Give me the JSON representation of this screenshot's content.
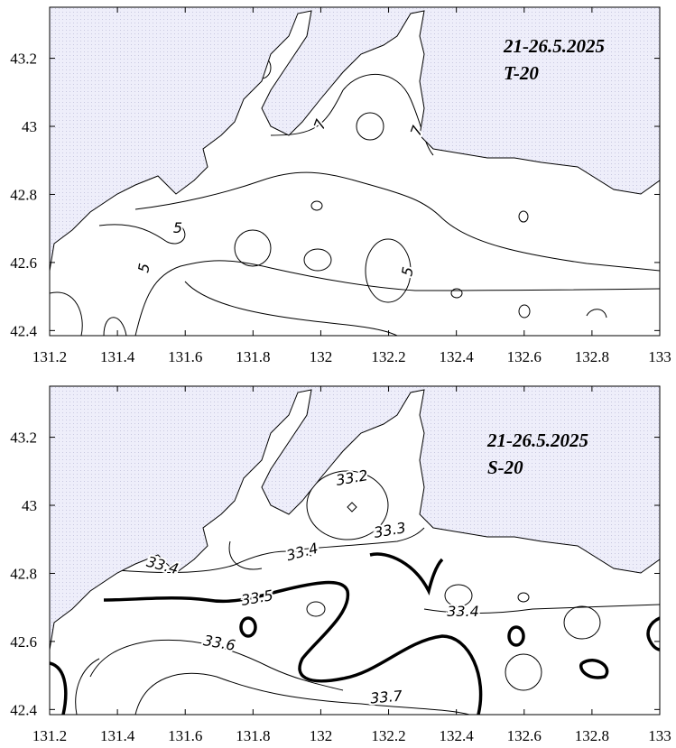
{
  "panels": [
    {
      "annotation": [
        "21-26.5.2025",
        "T-20"
      ],
      "xlim": [
        131.2,
        133
      ],
      "ylim": [
        42.385,
        43.35
      ],
      "xticks": [
        131.2,
        131.4,
        131.6,
        131.8,
        132,
        132.2,
        132.4,
        132.6,
        132.8,
        133
      ],
      "yticks": [
        42.4,
        42.6,
        42.8,
        43,
        43.2
      ],
      "contour_labels": [
        7,
        7,
        5,
        5,
        5
      ]
    },
    {
      "annotation": [
        "21-26.5.2025",
        "S-20"
      ],
      "xlim": [
        131.2,
        133
      ],
      "ylim": [
        42.385,
        43.35
      ],
      "xticks": [
        131.2,
        131.4,
        131.6,
        131.8,
        132,
        132.2,
        132.4,
        132.6,
        132.8,
        133
      ],
      "yticks": [
        42.4,
        42.6,
        42.8,
        43,
        43.2
      ],
      "contour_labels": [
        33.2,
        33.3,
        33.4,
        33.4,
        33.5,
        33.4,
        33.6,
        33.7
      ]
    }
  ]
}
